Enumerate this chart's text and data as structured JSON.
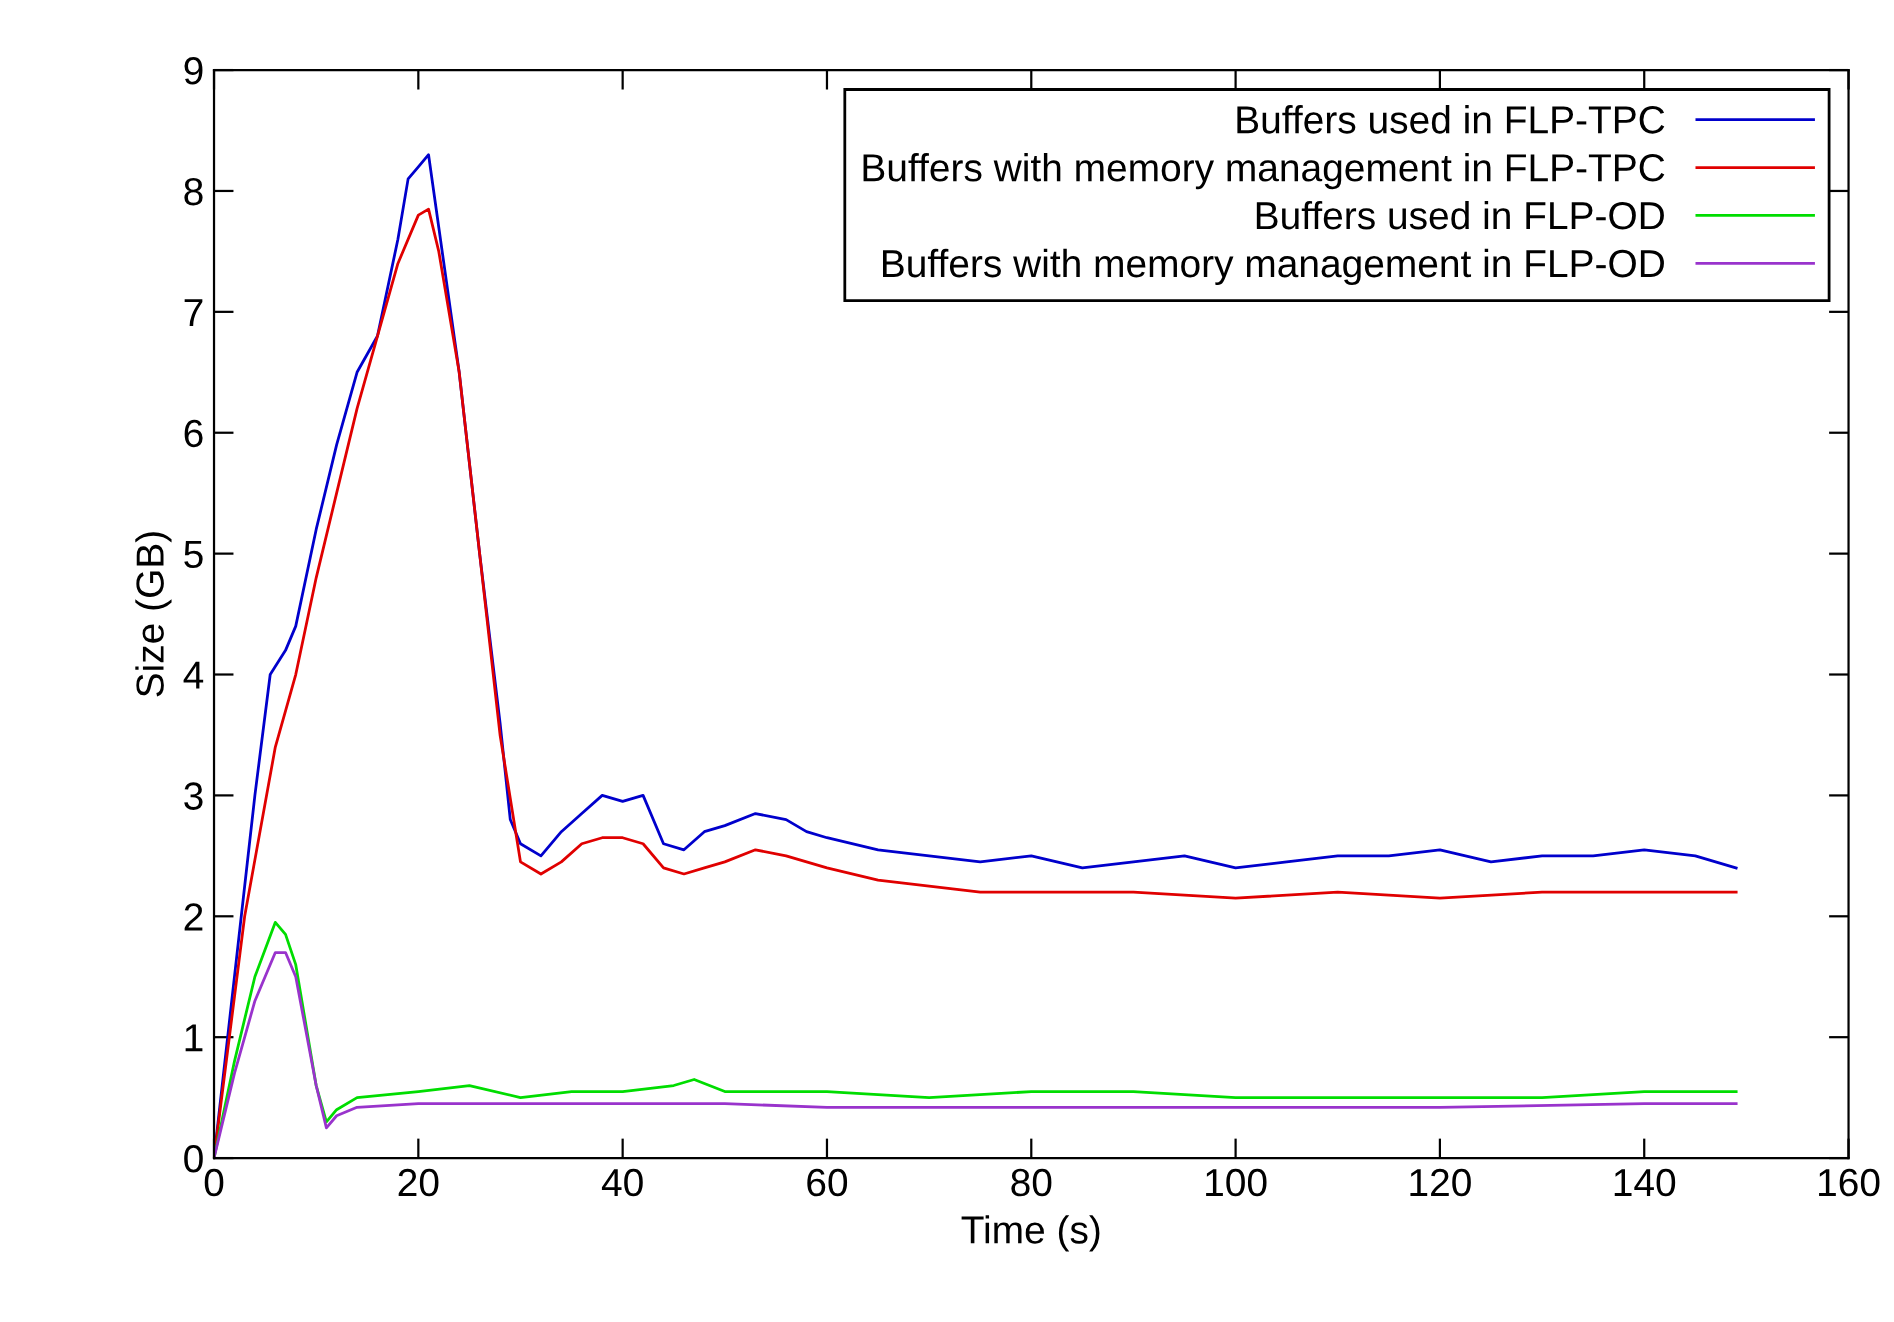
{
  "chart_data": {
    "type": "line",
    "xlabel": "Time (s)",
    "ylabel": "Size (GB)",
    "xlim": [
      0,
      160
    ],
    "ylim": [
      0,
      9
    ],
    "xticks": [
      0,
      20,
      40,
      60,
      80,
      100,
      120,
      140,
      160
    ],
    "yticks": [
      0,
      1,
      2,
      3,
      4,
      5,
      6,
      7,
      8,
      9
    ],
    "grid": false,
    "legend": "top right",
    "marker": "none",
    "line_style": "solid",
    "series": [
      {
        "name": "Buffers used in FLP-TPC",
        "color": "#0000cc",
        "x": [
          0,
          2,
          4,
          5.5,
          7,
          8,
          10,
          12,
          14,
          16,
          18,
          19,
          20,
          21,
          22,
          24,
          26,
          28,
          29,
          30,
          32,
          34,
          36,
          38,
          40,
          42,
          44,
          46,
          48,
          50,
          53,
          56,
          58,
          60,
          65,
          70,
          75,
          80,
          85,
          90,
          95,
          100,
          105,
          110,
          115,
          120,
          125,
          130,
          135,
          140,
          145,
          149
        ],
        "values": [
          0,
          1.5,
          3,
          4.0,
          4.2,
          4.4,
          5.2,
          5.9,
          6.5,
          6.8,
          7.6,
          8.1,
          8.2,
          8.3,
          7.7,
          6.5,
          5.0,
          3.6,
          2.8,
          2.6,
          2.5,
          2.7,
          2.85,
          3.0,
          2.95,
          3.0,
          2.6,
          2.55,
          2.7,
          2.75,
          2.85,
          2.8,
          2.7,
          2.65,
          2.55,
          2.5,
          2.45,
          2.5,
          2.4,
          2.45,
          2.5,
          2.4,
          2.45,
          2.5,
          2.5,
          2.55,
          2.45,
          2.5,
          2.5,
          2.55,
          2.5,
          2.4
        ]
      },
      {
        "name": "Buffers with memory management in FLP-TPC",
        "color": "#e00000",
        "x": [
          0,
          3,
          6,
          8,
          10,
          12,
          14,
          16,
          18,
          20,
          21,
          22,
          24,
          26,
          28,
          30,
          32,
          34,
          36,
          38,
          40,
          42,
          44,
          46,
          48,
          50,
          53,
          56,
          60,
          65,
          70,
          75,
          80,
          90,
          100,
          110,
          120,
          130,
          140,
          149
        ],
        "values": [
          0,
          2,
          3.4,
          4.0,
          4.8,
          5.5,
          6.2,
          6.8,
          7.4,
          7.8,
          7.85,
          7.5,
          6.5,
          5.0,
          3.5,
          2.45,
          2.35,
          2.45,
          2.6,
          2.65,
          2.65,
          2.6,
          2.4,
          2.35,
          2.4,
          2.45,
          2.55,
          2.5,
          2.4,
          2.3,
          2.25,
          2.2,
          2.2,
          2.2,
          2.15,
          2.2,
          2.15,
          2.2,
          2.2,
          2.2
        ]
      },
      {
        "name": "Buffers used in FLP-OD",
        "color": "#00dd00",
        "x": [
          0,
          2,
          4,
          6,
          7,
          8,
          10,
          11,
          12,
          14,
          20,
          25,
          30,
          35,
          40,
          45,
          47,
          50,
          60,
          70,
          80,
          90,
          100,
          110,
          120,
          130,
          140,
          149
        ],
        "values": [
          0,
          0.8,
          1.5,
          1.95,
          1.85,
          1.6,
          0.6,
          0.3,
          0.4,
          0.5,
          0.55,
          0.6,
          0.5,
          0.55,
          0.55,
          0.6,
          0.65,
          0.55,
          0.55,
          0.5,
          0.55,
          0.55,
          0.5,
          0.5,
          0.5,
          0.5,
          0.55,
          0.55
        ]
      },
      {
        "name": "Buffers with memory management in FLP-OD",
        "color": "#9933cc",
        "x": [
          0,
          2,
          4,
          6,
          7,
          8,
          10,
          11,
          12,
          14,
          20,
          30,
          40,
          50,
          60,
          80,
          100,
          120,
          140,
          149
        ],
        "values": [
          0,
          0.7,
          1.3,
          1.7,
          1.7,
          1.5,
          0.6,
          0.25,
          0.35,
          0.42,
          0.45,
          0.45,
          0.45,
          0.45,
          0.42,
          0.42,
          0.42,
          0.42,
          0.45,
          0.45
        ]
      }
    ]
  }
}
